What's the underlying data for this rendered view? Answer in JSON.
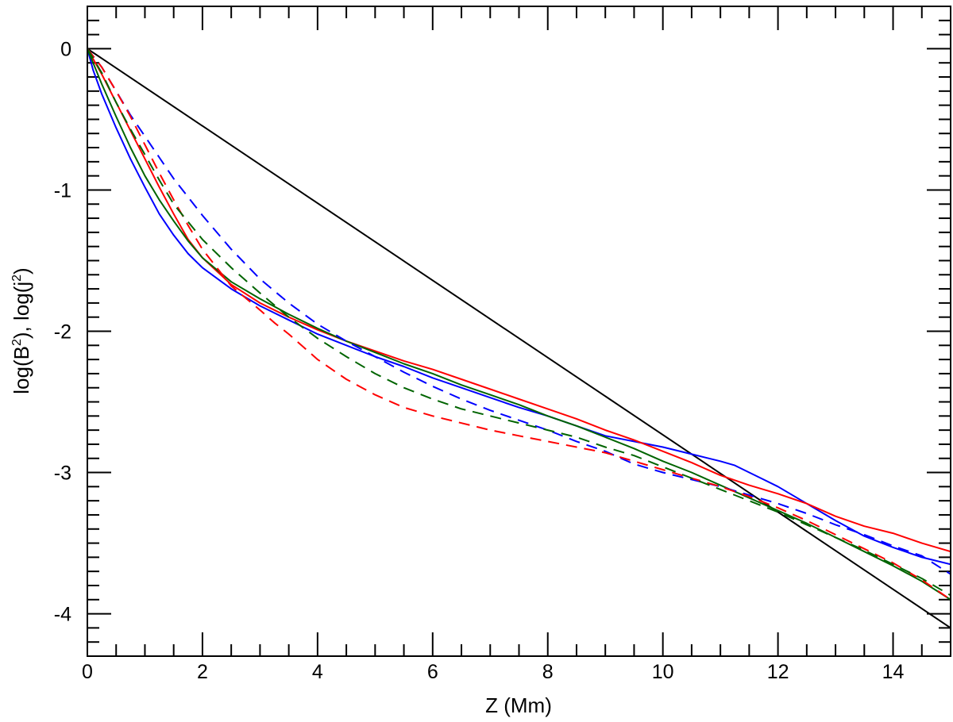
{
  "chart_data": {
    "type": "line",
    "title": "",
    "xlabel": "Z (Mm)",
    "ylabel_parts": [
      "log(B",
      "2",
      "), log(j",
      "2",
      ")"
    ],
    "xlim": [
      0,
      15
    ],
    "ylim": [
      -4.3,
      0.3
    ],
    "x_ticks": [
      0,
      2,
      4,
      6,
      8,
      10,
      12,
      14
    ],
    "y_ticks": [
      0,
      -1,
      -2,
      -3,
      -4
    ],
    "x_tick_labels": [
      "0",
      "2",
      "4",
      "6",
      "8",
      "10",
      "12",
      "14"
    ],
    "y_tick_labels": [
      "0",
      "-1",
      "-2",
      "-3",
      "-4"
    ],
    "x_minor_step": 0.5,
    "y_minor_step": 0.1,
    "grid": false,
    "legend": "none",
    "series": [
      {
        "color": "#000000",
        "dash": "solid",
        "x": [
          0,
          15
        ],
        "y": [
          0,
          -4.1
        ]
      },
      {
        "color": "#0000ff",
        "dash": "solid",
        "x": [
          0,
          0.1,
          0.25,
          0.5,
          0.75,
          1,
          1.25,
          1.5,
          1.75,
          2,
          2.5,
          3,
          3.5,
          4,
          4.5,
          5,
          5.5,
          6,
          6.5,
          7,
          7.5,
          8,
          8.5,
          9,
          9.5,
          10,
          10.5,
          11,
          11.25,
          11.5,
          11.75,
          12,
          12.5,
          13,
          13.5,
          14,
          14.5,
          15
        ],
        "y": [
          0,
          -0.15,
          -0.32,
          -0.56,
          -0.78,
          -0.98,
          -1.17,
          -1.32,
          -1.45,
          -1.55,
          -1.7,
          -1.82,
          -1.92,
          -2.02,
          -2.1,
          -2.18,
          -2.25,
          -2.33,
          -2.4,
          -2.47,
          -2.54,
          -2.6,
          -2.67,
          -2.74,
          -2.78,
          -2.82,
          -2.87,
          -2.92,
          -2.95,
          -3.0,
          -3.05,
          -3.1,
          -3.22,
          -3.34,
          -3.45,
          -3.53,
          -3.6,
          -3.65
        ]
      },
      {
        "color": "#ff0000",
        "dash": "solid",
        "x": [
          0,
          0.25,
          0.5,
          0.75,
          1,
          1.25,
          1.5,
          1.75,
          2,
          2.5,
          3,
          3.5,
          4,
          4.5,
          5,
          5.5,
          6,
          6.5,
          7,
          7.5,
          8,
          8.5,
          9,
          9.5,
          10,
          10.5,
          11,
          11.5,
          12,
          12.5,
          13,
          13.5,
          14,
          14.5,
          15
        ],
        "y": [
          0,
          -0.18,
          -0.38,
          -0.58,
          -0.78,
          -0.98,
          -1.17,
          -1.35,
          -1.48,
          -1.67,
          -1.8,
          -1.9,
          -1.99,
          -2.07,
          -2.14,
          -2.21,
          -2.27,
          -2.34,
          -2.41,
          -2.48,
          -2.55,
          -2.62,
          -2.7,
          -2.77,
          -2.85,
          -2.93,
          -3.02,
          -3.09,
          -3.15,
          -3.22,
          -3.31,
          -3.38,
          -3.43,
          -3.5,
          -3.56
        ]
      },
      {
        "color": "#006400",
        "dash": "solid",
        "x": [
          0,
          0.25,
          0.5,
          0.75,
          1,
          1.25,
          1.5,
          1.75,
          2,
          2.5,
          3,
          3.5,
          4,
          4.5,
          5,
          5.5,
          6,
          6.5,
          7,
          7.5,
          8,
          8.5,
          9,
          9.5,
          10,
          10.5,
          11,
          11.5,
          12,
          12.5,
          13,
          13.5,
          14,
          14.5,
          15
        ],
        "y": [
          0,
          -0.25,
          -0.48,
          -0.7,
          -0.9,
          -1.07,
          -1.22,
          -1.36,
          -1.48,
          -1.65,
          -1.77,
          -1.88,
          -1.98,
          -2.07,
          -2.15,
          -2.23,
          -2.3,
          -2.38,
          -2.45,
          -2.52,
          -2.6,
          -2.67,
          -2.75,
          -2.83,
          -2.92,
          -3.0,
          -3.09,
          -3.18,
          -3.27,
          -3.36,
          -3.46,
          -3.56,
          -3.66,
          -3.77,
          -3.9
        ]
      },
      {
        "color": "#0000ff",
        "dash": "dashed",
        "x": [
          0,
          0.25,
          0.5,
          0.75,
          1,
          1.25,
          1.5,
          2,
          2.5,
          3,
          3.5,
          4,
          4.5,
          5,
          5.5,
          6,
          6.5,
          7,
          7.5,
          8,
          8.5,
          9,
          9.5,
          10,
          10.5,
          11,
          11.5,
          12,
          12.5,
          13,
          13.5,
          14,
          14.5,
          15
        ],
        "y": [
          0,
          -0.13,
          -0.3,
          -0.47,
          -0.62,
          -0.77,
          -0.92,
          -1.18,
          -1.42,
          -1.63,
          -1.8,
          -1.95,
          -2.07,
          -2.18,
          -2.29,
          -2.39,
          -2.48,
          -2.56,
          -2.63,
          -2.7,
          -2.78,
          -2.85,
          -2.94,
          -3.0,
          -3.05,
          -3.1,
          -3.16,
          -3.22,
          -3.29,
          -3.37,
          -3.44,
          -3.52,
          -3.59,
          -3.72
        ]
      },
      {
        "color": "#ff0000",
        "dash": "dashed",
        "x": [
          0,
          0.25,
          0.5,
          0.75,
          1,
          1.25,
          1.5,
          1.75,
          2,
          2.5,
          3,
          3.25,
          3.5,
          4,
          4.5,
          5,
          5.5,
          6,
          6.5,
          7,
          7.5,
          8,
          8.5,
          9,
          9.5,
          10,
          10.5,
          11,
          11.5,
          12,
          12.5,
          13,
          13.5,
          14,
          14.5,
          15
        ],
        "y": [
          0,
          -0.13,
          -0.3,
          -0.48,
          -0.68,
          -0.88,
          -1.07,
          -1.25,
          -1.42,
          -1.68,
          -1.85,
          -1.94,
          -2.02,
          -2.2,
          -2.34,
          -2.45,
          -2.54,
          -2.6,
          -2.65,
          -2.7,
          -2.74,
          -2.78,
          -2.82,
          -2.86,
          -2.92,
          -2.98,
          -3.04,
          -3.1,
          -3.17,
          -3.25,
          -3.34,
          -3.44,
          -3.54,
          -3.64,
          -3.76,
          -3.9
        ]
      },
      {
        "color": "#006400",
        "dash": "dashed",
        "x": [
          0,
          0.25,
          0.5,
          0.75,
          1,
          1.25,
          1.5,
          2,
          2.5,
          3,
          3.5,
          4,
          4.5,
          5,
          5.5,
          6,
          6.5,
          7,
          7.5,
          8,
          8.5,
          9,
          9.5,
          10,
          10.5,
          11,
          11.5,
          12,
          12.5,
          13,
          13.5,
          14,
          14.5,
          15
        ],
        "y": [
          0,
          -0.17,
          -0.38,
          -0.57,
          -0.75,
          -0.93,
          -1.1,
          -1.35,
          -1.55,
          -1.73,
          -1.9,
          -2.05,
          -2.18,
          -2.3,
          -2.4,
          -2.48,
          -2.55,
          -2.6,
          -2.65,
          -2.7,
          -2.75,
          -2.82,
          -2.88,
          -2.96,
          -3.04,
          -3.12,
          -3.2,
          -3.28,
          -3.37,
          -3.46,
          -3.55,
          -3.65,
          -3.75,
          -3.87
        ]
      }
    ]
  }
}
